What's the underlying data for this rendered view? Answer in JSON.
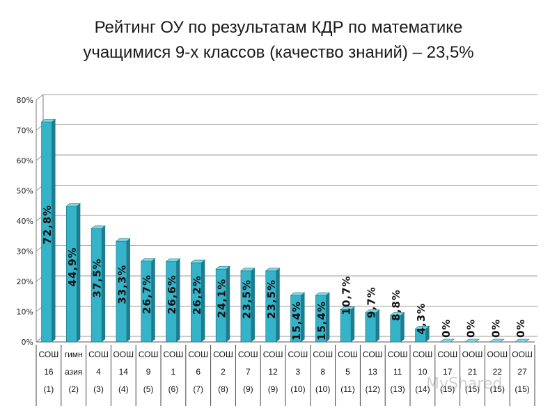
{
  "title": {
    "line1": "Рейтинг ОУ по результатам КДР по математике",
    "line2": "учащимися 9-х классов (качество знаний) – 23,5%"
  },
  "watermark": "MyShared",
  "colors": {
    "bar_front": "#35b3c8",
    "bar_side": "#1d7d8f",
    "bar_top": "#7fd6e4",
    "grid": "#9a9a9a"
  },
  "chart_data": {
    "type": "bar",
    "ylim": [
      0,
      80
    ],
    "yticks": [
      "0%",
      "10%",
      "20%",
      "30%",
      "40%",
      "50%",
      "60%",
      "70%",
      "80%"
    ],
    "grid": true,
    "categories": [
      [
        "СОШ",
        "16",
        "(1)"
      ],
      [
        "гимн",
        "азия",
        "(2)"
      ],
      [
        "СОШ",
        "4",
        "(3)"
      ],
      [
        "ООШ",
        "14",
        "(4)"
      ],
      [
        "СОШ",
        "9",
        "(5)"
      ],
      [
        "СОШ",
        "1",
        "(6)"
      ],
      [
        "СОШ",
        "6",
        "(7)"
      ],
      [
        "СОШ",
        "2",
        "(8)"
      ],
      [
        "СОШ",
        "7",
        "(9)"
      ],
      [
        "СОШ",
        "12",
        "(9)"
      ],
      [
        "СОШ",
        "3",
        "(10)"
      ],
      [
        "СОШ",
        "8",
        "(10)"
      ],
      [
        "СОШ",
        "5",
        "(11)"
      ],
      [
        "СОШ",
        "13",
        "(12)"
      ],
      [
        "СОШ",
        "11",
        "(13)"
      ],
      [
        "СОШ",
        "10",
        "(14)"
      ],
      [
        "СОШ",
        "17",
        "(15)"
      ],
      [
        "ООШ",
        "21",
        "(15)"
      ],
      [
        "ООШ",
        "22",
        "(15)"
      ],
      [
        "ООШ",
        "27",
        "(15)"
      ]
    ],
    "values": [
      72.8,
      44.9,
      37.5,
      33.3,
      26.7,
      26.6,
      26.2,
      24.1,
      23.5,
      23.5,
      15.4,
      15.4,
      10.7,
      9.7,
      8.8,
      4.3,
      0,
      0,
      0,
      0
    ],
    "data_labels": [
      "72,8%",
      "44,9%",
      "37,5%",
      "33,3%",
      "26,7%",
      "26,6%",
      "26,2%",
      "24,1%",
      "23,5%",
      "23,5%",
      "15,4%",
      "15,4%",
      "10,7%",
      "9,7%",
      "8,8%",
      "4,3%",
      "0%",
      "0%",
      "0%",
      "0%"
    ]
  }
}
